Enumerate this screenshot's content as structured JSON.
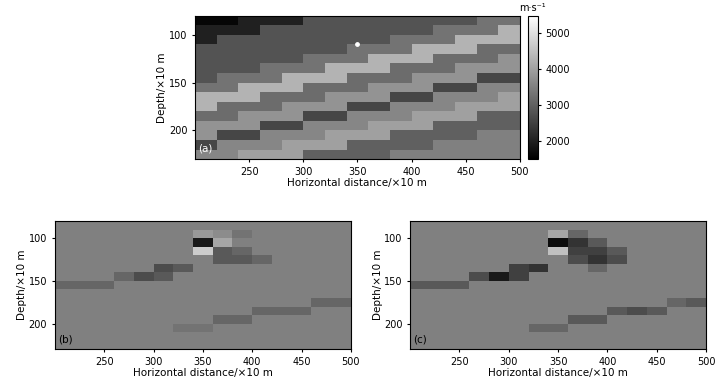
{
  "chart_data": [
    {
      "type": "heatmap",
      "panel_label": "(a)",
      "x_label": "Horizontal distance/×10 m",
      "y_label": "Depth/×10 m",
      "xlim": [
        200,
        500
      ],
      "ylim": [
        230,
        80
      ],
      "xticks": [
        250,
        300,
        350,
        400,
        450,
        500
      ],
      "yticks": [
        100,
        150,
        200
      ],
      "x": [
        210,
        230,
        250,
        270,
        290,
        310,
        330,
        350,
        370,
        390,
        410,
        430,
        450,
        470,
        490
      ],
      "y": [
        85,
        95,
        105,
        115,
        125,
        135,
        145,
        155,
        165,
        175,
        185,
        195,
        205,
        215,
        225
      ],
      "cells": [
        [
          1600,
          1600,
          2000,
          2000,
          2000,
          2800,
          2800,
          2800,
          2800,
          2800,
          2800,
          2800,
          2800,
          3300,
          3300
        ],
        [
          2000,
          2000,
          2000,
          2800,
          2800,
          2800,
          2800,
          2800,
          2800,
          2800,
          2800,
          3300,
          3300,
          3300,
          4300
        ],
        [
          2000,
          2800,
          2800,
          2800,
          2800,
          2800,
          2800,
          2800,
          2800,
          3300,
          3300,
          3300,
          4300,
          4300,
          4300
        ],
        [
          2800,
          2800,
          2800,
          2800,
          2800,
          2800,
          2800,
          3300,
          3300,
          3300,
          4300,
          4300,
          4300,
          3200,
          3200
        ],
        [
          2800,
          2800,
          2800,
          2800,
          2800,
          3300,
          3300,
          3300,
          4300,
          4300,
          4300,
          3200,
          3200,
          3200,
          3800
        ],
        [
          2800,
          2800,
          2800,
          3300,
          3300,
          3300,
          4300,
          4300,
          4300,
          3200,
          3200,
          3200,
          3800,
          3800,
          3800
        ],
        [
          2800,
          3300,
          3300,
          3300,
          4300,
          4300,
          4300,
          3200,
          3200,
          3200,
          3800,
          3800,
          3800,
          2600,
          2600
        ],
        [
          3300,
          3300,
          4300,
          4300,
          4300,
          3200,
          3200,
          3200,
          3800,
          3800,
          3800,
          2600,
          2600,
          3600,
          3600
        ],
        [
          4300,
          4300,
          4300,
          3200,
          3200,
          3200,
          3800,
          3800,
          3800,
          2600,
          2600,
          3600,
          3600,
          3600,
          4000
        ],
        [
          4300,
          3200,
          3200,
          3200,
          3800,
          3800,
          3800,
          2600,
          2600,
          3600,
          3600,
          3600,
          4000,
          4000,
          4000
        ],
        [
          3200,
          3200,
          3800,
          3800,
          3800,
          2600,
          2600,
          3600,
          3600,
          3600,
          4000,
          4000,
          4000,
          3000,
          3000
        ],
        [
          3800,
          3800,
          3800,
          2600,
          2600,
          3600,
          3600,
          3600,
          4000,
          4000,
          4000,
          3000,
          3000,
          3000,
          3000
        ],
        [
          3800,
          2600,
          2600,
          3600,
          3600,
          3600,
          4000,
          4000,
          4000,
          3000,
          3000,
          3000,
          3000,
          3500,
          3500
        ],
        [
          2600,
          3600,
          3600,
          3600,
          4000,
          4000,
          4000,
          3000,
          3000,
          3000,
          3000,
          3500,
          3500,
          3500,
          3500
        ],
        [
          3600,
          3600,
          4000,
          4000,
          4000,
          3000,
          3000,
          3000,
          3000,
          3500,
          3500,
          3500,
          3500,
          3500,
          3500
        ]
      ],
      "colorbar": {
        "label": "m·s⁻¹",
        "range": [
          1500,
          5500
        ],
        "ticks": [
          2000,
          3000,
          4000,
          5000
        ]
      },
      "point": {
        "x": 350,
        "y": 110,
        "color": "white"
      }
    },
    {
      "type": "heatmap",
      "panel_label": "(b)",
      "x_label": "Horizontal distance/×10 m",
      "y_label": "Depth/×10 m",
      "xlim": [
        200,
        500
      ],
      "ylim": [
        230,
        80
      ],
      "xticks": [
        250,
        300,
        350,
        400,
        450,
        500
      ],
      "yticks": [
        100,
        150,
        200
      ],
      "x": [
        210,
        230,
        250,
        270,
        290,
        310,
        330,
        350,
        370,
        390,
        410,
        430,
        450,
        470,
        490
      ],
      "y": [
        85,
        95,
        105,
        115,
        125,
        135,
        145,
        155,
        165,
        175,
        185,
        195,
        205,
        215,
        225
      ],
      "color_range": [
        -1,
        1
      ],
      "cells": [
        [
          0,
          0,
          0,
          0,
          0,
          0,
          0,
          0,
          0,
          0,
          0,
          0,
          0,
          0,
          0
        ],
        [
          0,
          0,
          0,
          0,
          0,
          0,
          0,
          0.2,
          0.1,
          -0.1,
          0,
          0,
          0,
          0,
          0
        ],
        [
          0,
          0,
          0,
          0,
          0,
          0,
          0,
          -0.8,
          0.3,
          0,
          0,
          0,
          0,
          0,
          0
        ],
        [
          0,
          0,
          0,
          0,
          0,
          0,
          0,
          0.6,
          -0.3,
          -0.2,
          0,
          0,
          0,
          0,
          0
        ],
        [
          0,
          0,
          0,
          0,
          0,
          0,
          0,
          0,
          -0.3,
          -0.3,
          -0.2,
          0,
          0,
          0,
          0
        ],
        [
          0,
          0,
          0,
          0,
          0,
          -0.4,
          -0.3,
          0,
          0,
          0,
          0,
          0,
          0,
          0,
          0
        ],
        [
          0,
          0,
          0,
          -0.2,
          -0.4,
          -0.3,
          0,
          0,
          0,
          0,
          0,
          0,
          0,
          0,
          0
        ],
        [
          -0.2,
          -0.2,
          -0.2,
          0,
          0,
          0,
          0,
          0,
          0,
          0,
          0,
          0,
          0,
          0,
          0
        ],
        [
          0,
          0,
          0,
          0,
          0,
          0,
          0,
          0,
          0,
          0,
          0,
          0,
          0,
          0,
          0
        ],
        [
          0,
          0,
          0,
          0,
          0,
          0,
          0,
          0,
          0,
          0,
          0,
          0,
          0,
          -0.2,
          -0.2
        ],
        [
          0,
          0,
          0,
          0,
          0,
          0,
          0,
          0,
          0,
          0,
          -0.2,
          -0.2,
          -0.2,
          0,
          0
        ],
        [
          0,
          0,
          0,
          0,
          0,
          0,
          0,
          0,
          -0.2,
          -0.2,
          0,
          0,
          0,
          0,
          0
        ],
        [
          0,
          0,
          0,
          0,
          0,
          0,
          -0.1,
          -0.1,
          0,
          0,
          0,
          0,
          0,
          0,
          0
        ],
        [
          0,
          0,
          0,
          0,
          0,
          0,
          0,
          0,
          0,
          0,
          0,
          0,
          0,
          0,
          0
        ],
        [
          0,
          0,
          0,
          0,
          0,
          0,
          0,
          0,
          0,
          0,
          0,
          0,
          0,
          0,
          0
        ]
      ]
    },
    {
      "type": "heatmap",
      "panel_label": "(c)",
      "x_label": "Horizontal distance/×10 m",
      "y_label": "Depth/×10 m",
      "xlim": [
        200,
        500
      ],
      "ylim": [
        230,
        80
      ],
      "xticks": [
        250,
        300,
        350,
        400,
        450,
        500
      ],
      "yticks": [
        100,
        150,
        200
      ],
      "x": [
        210,
        230,
        250,
        270,
        290,
        310,
        330,
        350,
        370,
        390,
        410,
        430,
        450,
        470,
        490
      ],
      "y": [
        85,
        95,
        105,
        115,
        125,
        135,
        145,
        155,
        165,
        175,
        185,
        195,
        205,
        215,
        225
      ],
      "color_range": [
        -1,
        1
      ],
      "cells": [
        [
          0,
          0,
          0,
          0,
          0,
          0,
          0,
          0,
          0,
          0,
          0,
          0,
          0,
          0,
          0
        ],
        [
          0,
          0,
          0,
          0,
          0,
          0,
          0,
          0.3,
          -0.2,
          0,
          0,
          0,
          0,
          0,
          0
        ],
        [
          0,
          0,
          0,
          0,
          0,
          0,
          0,
          -0.9,
          -0.6,
          -0.3,
          0,
          0,
          0,
          0,
          0
        ],
        [
          0,
          0,
          0,
          0,
          0,
          0,
          0,
          0.5,
          -0.5,
          -0.5,
          -0.3,
          0,
          0,
          0,
          0
        ],
        [
          0,
          0,
          0,
          0,
          0,
          0,
          0,
          0,
          -0.4,
          -0.6,
          -0.4,
          0,
          0,
          0,
          0
        ],
        [
          0,
          0,
          0,
          0,
          0,
          -0.5,
          -0.6,
          0,
          0,
          -0.2,
          0,
          0,
          0,
          0,
          0
        ],
        [
          0,
          0,
          0,
          -0.4,
          -0.8,
          -0.5,
          0,
          0,
          0,
          0,
          0,
          0,
          0,
          0,
          0
        ],
        [
          -0.3,
          -0.3,
          -0.3,
          0,
          0,
          0,
          0,
          0,
          0,
          0,
          0,
          0,
          0,
          0,
          0
        ],
        [
          0,
          0,
          0,
          0,
          0,
          0,
          0,
          0,
          0,
          0,
          0,
          0,
          0,
          0,
          0
        ],
        [
          0,
          0,
          0,
          0,
          0,
          0,
          0,
          0,
          0,
          0,
          0,
          0,
          0,
          -0.2,
          -0.3
        ],
        [
          0,
          0,
          0,
          0,
          0,
          0,
          0,
          0,
          0,
          0,
          -0.3,
          -0.4,
          -0.3,
          0,
          0
        ],
        [
          0,
          0,
          0,
          0,
          0,
          0,
          0,
          0,
          -0.3,
          -0.3,
          0,
          0,
          0,
          0,
          0
        ],
        [
          0,
          0,
          0,
          0,
          0,
          0,
          -0.2,
          -0.2,
          0,
          0,
          0,
          0,
          0,
          0,
          0
        ],
        [
          0,
          0,
          0,
          0,
          0,
          0,
          0,
          0,
          0,
          0,
          0,
          0,
          0,
          0,
          0
        ],
        [
          0,
          0,
          0,
          0,
          0,
          0,
          0,
          0,
          0,
          0,
          0,
          0,
          0,
          0,
          0
        ]
      ]
    }
  ]
}
